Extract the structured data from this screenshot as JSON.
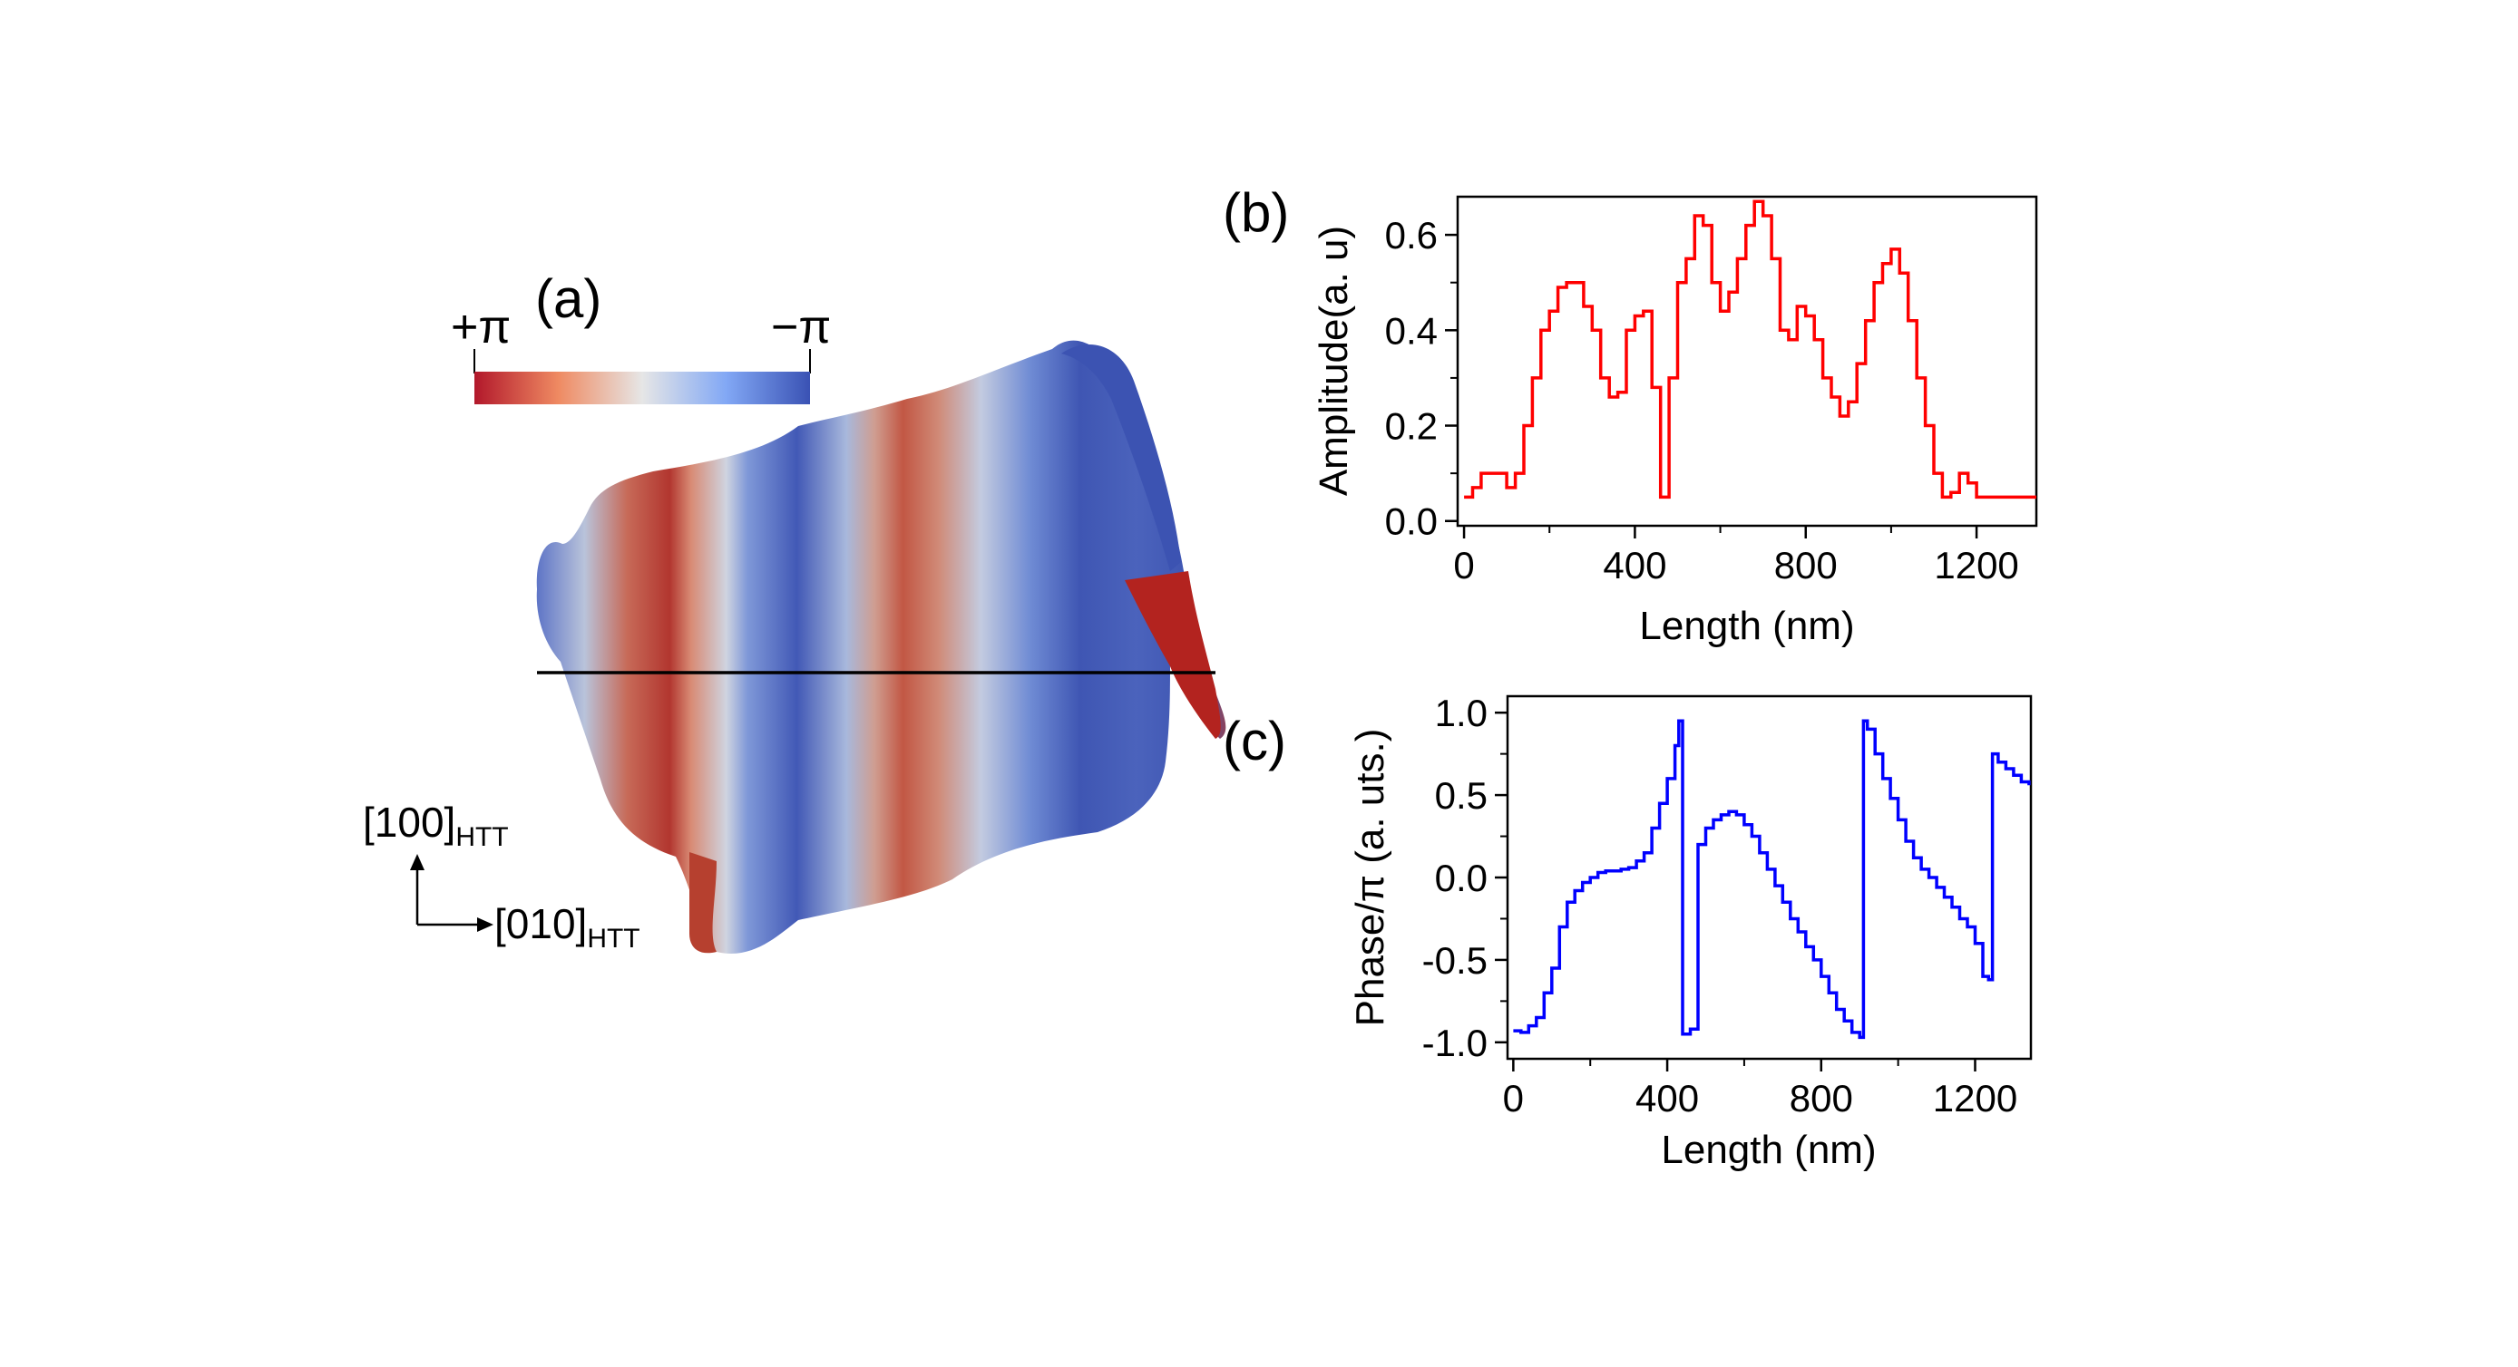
{
  "panel_a": {
    "label": "(a)",
    "colorbar": {
      "left_label": "+π",
      "right_label": "−π",
      "colors": [
        "#b2182b",
        "#ef8a62",
        "#e6e6e6",
        "#82a8f5",
        "#3a52b4"
      ]
    },
    "axis_x_main": "[010]",
    "axis_x_sub": "HTT",
    "axis_y_main": "[100]",
    "axis_y_sub": "HTT"
  },
  "panel_b": {
    "label": "(b)"
  },
  "panel_c": {
    "label": "(c)"
  },
  "chart_data": [
    {
      "id": "b",
      "type": "line",
      "step": true,
      "color": "#ff0000",
      "xlabel": "Length (nm)",
      "ylabel": "Amplitude(a. u)",
      "xlim": [
        -15,
        1340
      ],
      "ylim": [
        -0.01,
        0.68
      ],
      "xticks": [
        0,
        400,
        800,
        1200
      ],
      "yticks": [
        0.0,
        0.2,
        0.4,
        0.6
      ],
      "ytick_labels": [
        "0.0",
        "0.2",
        "0.4",
        "0.6"
      ],
      "x": [
        0,
        20,
        40,
        60,
        80,
        100,
        120,
        140,
        160,
        180,
        200,
        220,
        240,
        260,
        280,
        300,
        320,
        340,
        360,
        380,
        400,
        420,
        440,
        460,
        480,
        500,
        520,
        540,
        560,
        580,
        600,
        620,
        640,
        660,
        680,
        700,
        720,
        740,
        760,
        780,
        800,
        820,
        840,
        860,
        880,
        900,
        920,
        940,
        960,
        980,
        1000,
        1020,
        1040,
        1060,
        1080,
        1100,
        1120,
        1140,
        1160,
        1180,
        1200,
        1220,
        1240,
        1260,
        1280,
        1300,
        1320,
        1340
      ],
      "values": [
        0.05,
        0.07,
        0.1,
        0.1,
        0.1,
        0.07,
        0.1,
        0.2,
        0.3,
        0.4,
        0.44,
        0.49,
        0.5,
        0.5,
        0.45,
        0.4,
        0.3,
        0.26,
        0.27,
        0.4,
        0.43,
        0.44,
        0.28,
        0.05,
        0.3,
        0.5,
        0.55,
        0.64,
        0.62,
        0.5,
        0.44,
        0.48,
        0.55,
        0.62,
        0.67,
        0.64,
        0.55,
        0.4,
        0.38,
        0.45,
        0.43,
        0.38,
        0.3,
        0.26,
        0.22,
        0.25,
        0.33,
        0.42,
        0.5,
        0.54,
        0.57,
        0.52,
        0.42,
        0.3,
        0.2,
        0.1,
        0.05,
        0.06,
        0.1,
        0.08,
        0.05,
        0.05,
        0.05,
        0.05,
        0.05,
        0.05,
        0.05,
        0.05
      ]
    },
    {
      "id": "c",
      "type": "line",
      "step": true,
      "color": "#0000ff",
      "xlabel": "Length (nm)",
      "ylabel": "Phase/π (a. uts.)",
      "xlim": [
        -15,
        1345
      ],
      "ylim": [
        -1.1,
        1.1
      ],
      "xticks": [
        0,
        400,
        800,
        1200
      ],
      "yticks": [
        -1.0,
        -0.5,
        0.0,
        0.5,
        1.0
      ],
      "ytick_labels": [
        "-1.0",
        "-0.5",
        "0.0",
        "0.5",
        "1.0"
      ],
      "x": [
        0,
        20,
        40,
        60,
        80,
        100,
        120,
        140,
        160,
        180,
        200,
        220,
        240,
        260,
        280,
        300,
        320,
        340,
        360,
        380,
        400,
        420,
        430,
        440,
        460,
        480,
        500,
        520,
        540,
        560,
        580,
        600,
        620,
        640,
        660,
        680,
        700,
        720,
        740,
        760,
        780,
        800,
        820,
        840,
        860,
        880,
        900,
        910,
        920,
        940,
        960,
        980,
        1000,
        1020,
        1040,
        1060,
        1080,
        1100,
        1120,
        1140,
        1160,
        1180,
        1200,
        1220,
        1235,
        1245,
        1260,
        1280,
        1300,
        1320,
        1340
      ],
      "values": [
        -0.93,
        -0.94,
        -0.9,
        -0.85,
        -0.7,
        -0.55,
        -0.3,
        -0.15,
        -0.08,
        -0.03,
        0.0,
        0.03,
        0.04,
        0.04,
        0.05,
        0.06,
        0.1,
        0.15,
        0.3,
        0.45,
        0.6,
        0.8,
        0.95,
        -0.95,
        -0.92,
        0.2,
        0.3,
        0.35,
        0.38,
        0.4,
        0.38,
        0.32,
        0.25,
        0.15,
        0.05,
        -0.05,
        -0.15,
        -0.25,
        -0.33,
        -0.42,
        -0.5,
        -0.6,
        -0.7,
        -0.8,
        -0.87,
        -0.94,
        -0.97,
        0.95,
        0.9,
        0.75,
        0.6,
        0.48,
        0.35,
        0.22,
        0.12,
        0.05,
        0.0,
        -0.06,
        -0.12,
        -0.18,
        -0.25,
        -0.3,
        -0.4,
        -0.6,
        -0.62,
        0.75,
        0.7,
        0.66,
        0.62,
        0.58,
        0.56
      ]
    }
  ]
}
